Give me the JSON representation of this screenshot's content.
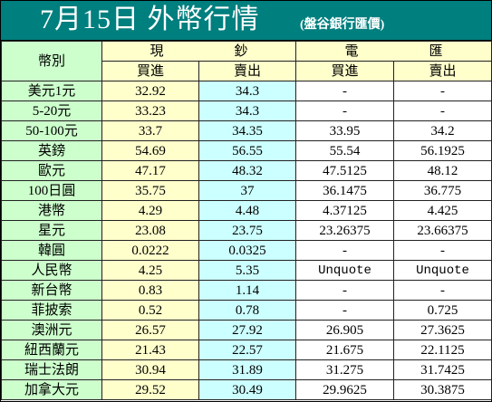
{
  "title": {
    "main": "7月15日 外幣行情",
    "sub": "(盤谷銀行匯價)"
  },
  "header": {
    "currency_label": "幣別",
    "cash_left": "現",
    "cash_right": "鈔",
    "tt_left": "電",
    "tt_right": "匯",
    "buy": "買進",
    "sell": "賣出"
  },
  "rows": [
    {
      "name": "美元1元",
      "cash_buy": "32.92",
      "cash_sell": "34.3",
      "tt_buy": "-",
      "tt_sell": "-"
    },
    {
      "name": "5-20元",
      "cash_buy": "33.23",
      "cash_sell": "34.3",
      "tt_buy": "-",
      "tt_sell": "-"
    },
    {
      "name": "50-100元",
      "cash_buy": "33.7",
      "cash_sell": "34.35",
      "tt_buy": "33.95",
      "tt_sell": "34.2"
    },
    {
      "name": "英鎊",
      "cash_buy": "54.69",
      "cash_sell": "56.55",
      "tt_buy": "55.54",
      "tt_sell": "56.1925"
    },
    {
      "name": "歐元",
      "cash_buy": "47.17",
      "cash_sell": "48.32",
      "tt_buy": "47.5125",
      "tt_sell": "48.12"
    },
    {
      "name": "100日圓",
      "cash_buy": "35.75",
      "cash_sell": "37",
      "tt_buy": "36.1475",
      "tt_sell": "36.775"
    },
    {
      "name": "港幣",
      "cash_buy": "4.29",
      "cash_sell": "4.48",
      "tt_buy": "4.37125",
      "tt_sell": "4.425"
    },
    {
      "name": "星元",
      "cash_buy": "23.08",
      "cash_sell": "23.75",
      "tt_buy": "23.26375",
      "tt_sell": "23.66375"
    },
    {
      "name": "韓圓",
      "cash_buy": "0.0222",
      "cash_sell": "0.0325",
      "tt_buy": "-",
      "tt_sell": "-"
    },
    {
      "name": "人民幣",
      "cash_buy": "4.25",
      "cash_sell": "5.35",
      "tt_buy": "Unquote",
      "tt_sell": "Unquote"
    },
    {
      "name": "新台幣",
      "cash_buy": "0.83",
      "cash_sell": "1.14",
      "tt_buy": "-",
      "tt_sell": "-"
    },
    {
      "name": "菲披索",
      "cash_buy": "0.52",
      "cash_sell": "0.78",
      "tt_buy": "-",
      "tt_sell": "0.725"
    },
    {
      "name": "澳洲元",
      "cash_buy": "26.57",
      "cash_sell": "27.92",
      "tt_buy": "26.905",
      "tt_sell": "27.3625"
    },
    {
      "name": "紐西蘭元",
      "cash_buy": "21.43",
      "cash_sell": "22.57",
      "tt_buy": "21.675",
      "tt_sell": "22.1125"
    },
    {
      "name": "瑞士法朗",
      "cash_buy": "30.94",
      "cash_sell": "31.89",
      "tt_buy": "31.275",
      "tt_sell": "31.7425"
    },
    {
      "name": "加拿大元",
      "cash_buy": "29.52",
      "cash_sell": "30.49",
      "tt_buy": "29.9625",
      "tt_sell": "30.3875"
    }
  ],
  "colors": {
    "title_bg": "#007f7f",
    "currency_col_bg": "#ccffcc",
    "header_bg": "#ffffcc",
    "cash_buy_bg": "#ffffcc",
    "cash_sell_bg": "#ccffff",
    "tt_bg": "#ffffff"
  }
}
